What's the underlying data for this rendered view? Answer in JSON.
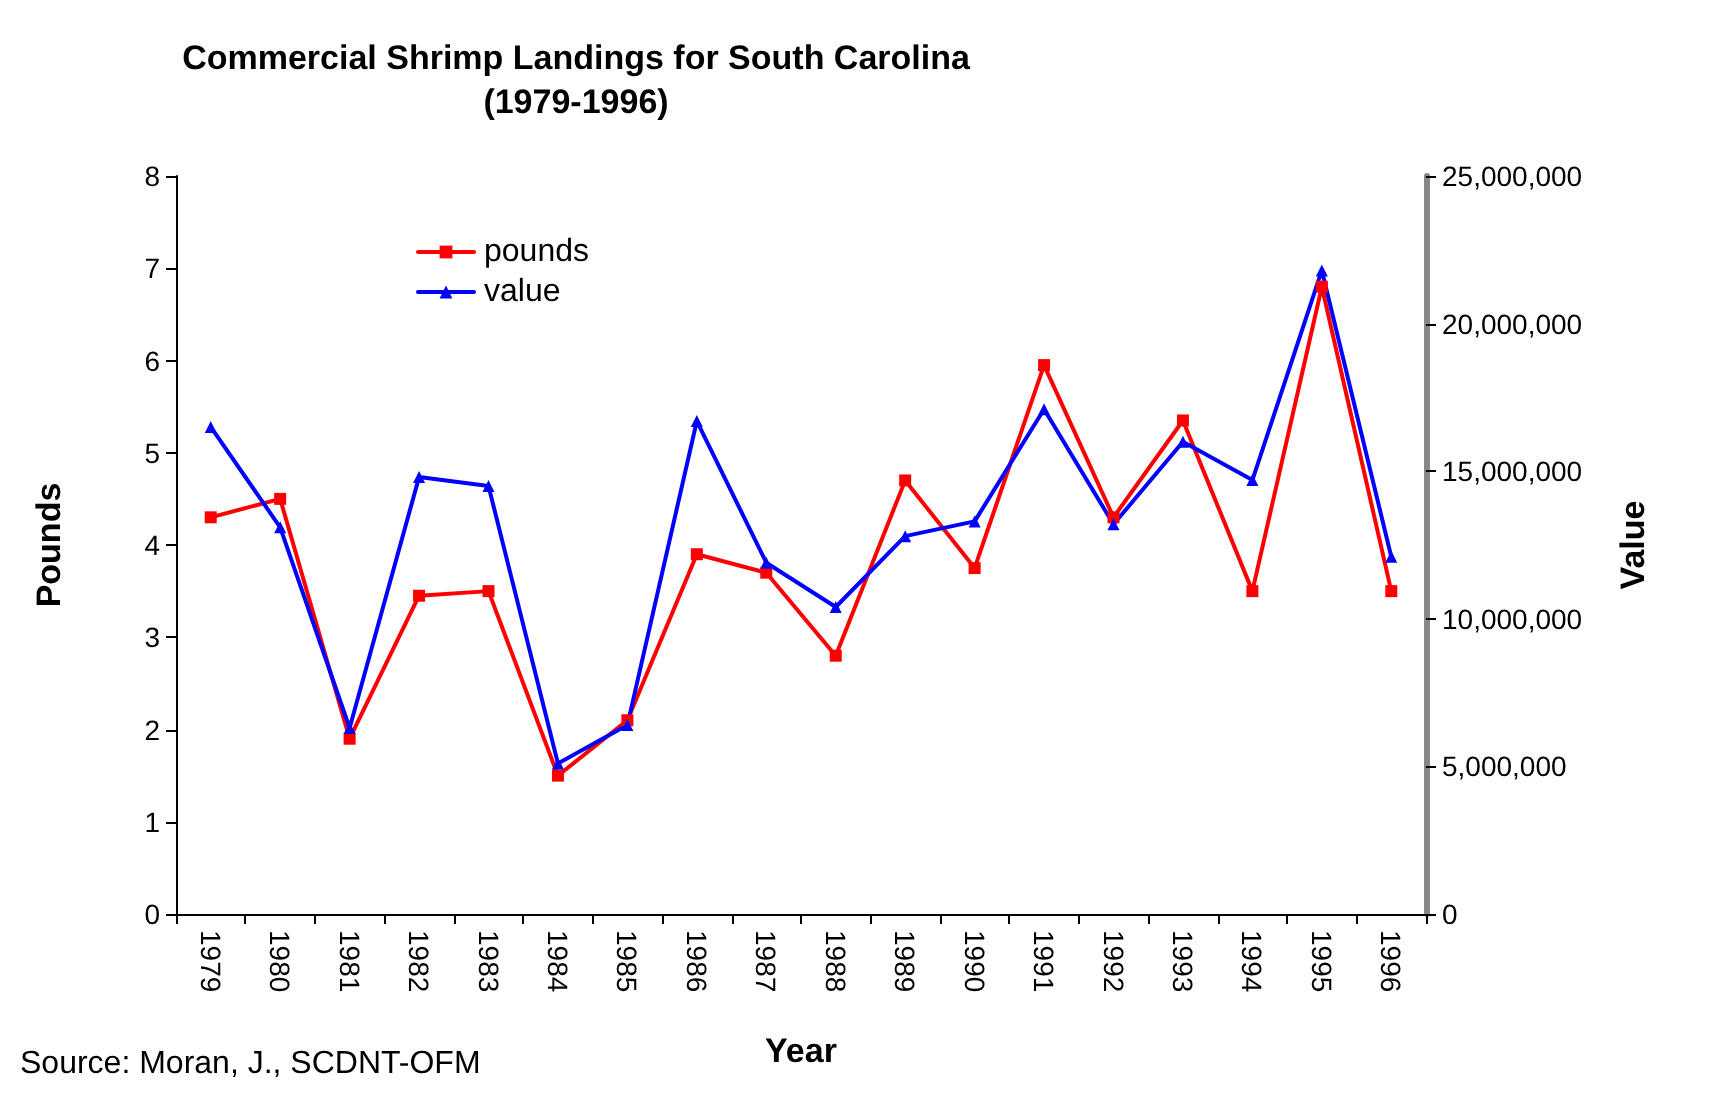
{
  "chart_data": {
    "type": "line",
    "title": "Commercial Shrimp Landings for South Carolina\n(1979-1996)",
    "xlabel": "Year",
    "ylabel": "Pounds",
    "y2label": "Value",
    "categories": [
      "1979",
      "1980",
      "1981",
      "1982",
      "1983",
      "1984",
      "1985",
      "1986",
      "1987",
      "1988",
      "1989",
      "1990",
      "1991",
      "1992",
      "1993",
      "1994",
      "1995",
      "1996"
    ],
    "series": [
      {
        "name": "pounds",
        "color": "#ff0000",
        "marker": "square",
        "values": [
          4.3,
          4.5,
          1.9,
          3.45,
          3.5,
          1.5,
          2.1,
          3.9,
          3.7,
          2.8,
          4.7,
          3.75,
          5.95,
          4.3,
          5.35,
          3.5,
          6.8,
          3.5
        ]
      },
      {
        "name": "value",
        "color": "#0000ff",
        "marker": "triangle",
        "axis": "y2",
        "values": [
          16500000,
          13100000,
          6300000,
          14800000,
          14500000,
          5100000,
          6400000,
          16700000,
          11900000,
          10400000,
          12800000,
          13300000,
          17100000,
          13200000,
          16000000,
          14700000,
          21800000,
          12100000
        ]
      }
    ],
    "ylim": [
      0,
      8
    ],
    "yticks": [
      0,
      1,
      2,
      3,
      4,
      5,
      6,
      7,
      8
    ],
    "y2lim": [
      0,
      25000000
    ],
    "y2ticks": [
      0,
      {
        "value": 5000000,
        "label": "5,000,000"
      },
      {
        "value": 10000000,
        "label": "10,000,000"
      },
      {
        "value": 15000000,
        "label": "15,000,000"
      },
      {
        "value": 20000000,
        "label": "20,000,000"
      },
      {
        "value": 25000000,
        "label": "25,000,000"
      }
    ],
    "grid": false,
    "legend": "top left",
    "line_style": "solid",
    "annotations": [
      "Source: Moran, J., SCDNT-OFM"
    ]
  }
}
